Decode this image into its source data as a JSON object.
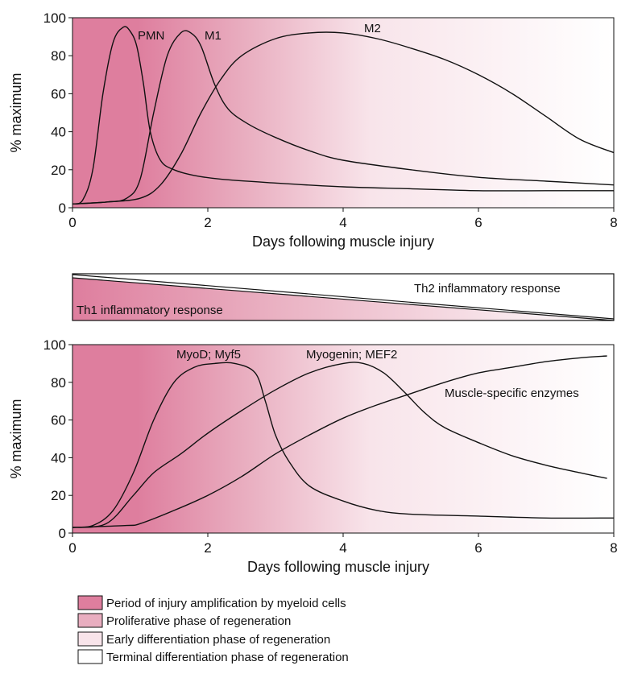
{
  "colors": {
    "magenta": "#de7e9e",
    "phase_1": "#de7e9e",
    "phase_2": "#e9aec0",
    "phase_3": "#f8e4ea",
    "phase_4": "#ffffff",
    "line": "#111111"
  },
  "chart_data": [
    {
      "type": "line",
      "xlabel": "Days following muscle injury",
      "ylabel": "% maximum",
      "xlim": [
        0,
        8
      ],
      "ylim": [
        0,
        100
      ],
      "xticks": [
        0,
        2,
        4,
        6,
        8
      ],
      "yticks": [
        0,
        20,
        40,
        60,
        80,
        100
      ],
      "background": "gradient",
      "series": [
        {
          "name": "PMN",
          "x": [
            0,
            0.15,
            0.3,
            0.45,
            0.6,
            0.75,
            0.85,
            0.95,
            1.05,
            1.15,
            1.3,
            1.5,
            1.8,
            2.2,
            3,
            4,
            5,
            6,
            7,
            8
          ],
          "y": [
            2,
            4,
            20,
            60,
            87,
            95,
            93,
            85,
            65,
            40,
            25,
            20,
            17,
            15,
            13,
            11,
            10,
            9,
            9,
            9
          ]
        },
        {
          "name": "M1",
          "x": [
            0,
            0.5,
            0.8,
            1.0,
            1.2,
            1.4,
            1.6,
            1.75,
            1.9,
            2.1,
            2.3,
            2.6,
            3,
            3.5,
            4,
            5,
            6,
            7,
            8
          ],
          "y": [
            2,
            3,
            5,
            15,
            50,
            80,
            92,
            92,
            85,
            65,
            52,
            44,
            37,
            30,
            25,
            20,
            16,
            14,
            12
          ]
        },
        {
          "name": "M2",
          "x": [
            0,
            0.5,
            1.0,
            1.3,
            1.6,
            1.9,
            2.2,
            2.5,
            3,
            3.5,
            4,
            4.5,
            5,
            5.5,
            6,
            6.5,
            7,
            7.5,
            8
          ],
          "y": [
            2,
            3,
            5,
            12,
            28,
            50,
            68,
            80,
            89,
            92,
            92,
            89,
            84,
            78,
            70,
            60,
            48,
            36,
            29
          ]
        }
      ]
    },
    {
      "type": "line",
      "xlabel": "Days following muscle injury",
      "ylabel": "% maximum",
      "xlim": [
        0,
        8
      ],
      "ylim": [
        0,
        100
      ],
      "xticks": [
        0,
        2,
        4,
        6,
        8
      ],
      "yticks": [
        0,
        20,
        40,
        60,
        80,
        100
      ],
      "background": "gradient",
      "series": [
        {
          "name": "MyoD; Myf5",
          "x": [
            0,
            0.3,
            0.6,
            0.9,
            1.2,
            1.5,
            1.8,
            2.1,
            2.4,
            2.7,
            2.85,
            3.0,
            3.2,
            3.5,
            4,
            4.5,
            5,
            6,
            7,
            8
          ],
          "y": [
            3,
            4,
            12,
            32,
            60,
            80,
            88,
            90,
            90,
            85,
            70,
            52,
            38,
            25,
            17,
            12,
            10,
            9,
            8,
            8
          ]
        },
        {
          "name": "Myogenin;  MEF2",
          "x": [
            0,
            0.5,
            0.9,
            1.2,
            1.6,
            2,
            2.5,
            3,
            3.5,
            4,
            4.3,
            4.6,
            4.9,
            5.2,
            5.5,
            6,
            6.5,
            7,
            7.5,
            7.9
          ],
          "y": [
            3,
            5,
            20,
            32,
            42,
            53,
            65,
            76,
            85,
            90,
            90,
            85,
            75,
            64,
            56,
            48,
            41,
            36,
            32,
            29
          ]
        },
        {
          "name": "Muscle-specific enzymes",
          "x": [
            0,
            0.8,
            1.0,
            1.5,
            2,
            2.5,
            3,
            3.5,
            4,
            4.5,
            5,
            5.5,
            6,
            6.5,
            7,
            7.5,
            7.9
          ],
          "y": [
            3,
            4,
            5,
            12,
            20,
            30,
            42,
            52,
            61,
            68,
            74,
            80,
            85,
            88,
            91,
            93,
            94
          ]
        }
      ]
    }
  ],
  "response_bar": {
    "th1_label": "Th1 inflammatory response",
    "th2_label": "Th2 inflammatory response"
  },
  "legend": [
    {
      "label": "Period of injury amplification by myeloid cells",
      "color": "#de7e9e"
    },
    {
      "label": "Proliferative phase of regeneration",
      "color": "#e9aec0"
    },
    {
      "label": "Early differentiation phase of regeneration",
      "color": "#f8e4ea"
    },
    {
      "label": "Terminal differentiation phase of regeneration",
      "color": "#ffffff"
    }
  ]
}
